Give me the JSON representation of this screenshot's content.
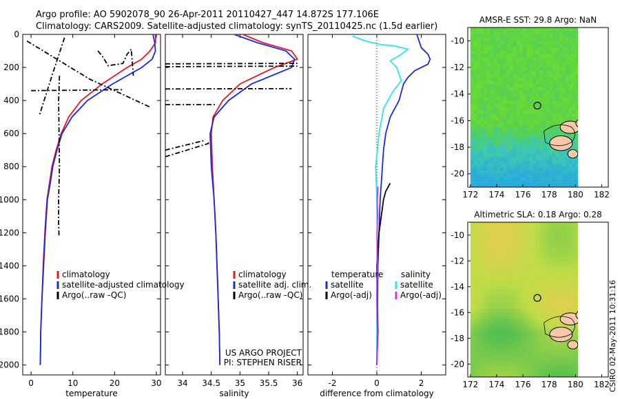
{
  "header": {
    "line1": "Argo profile: AO 5902078_90 26-Apr-2011 20110427_447 14.872S 177.106E",
    "line2": "Climatology: CARS2009. Satellite-adjusted climatology: synTS_20110425.nc (1.5d earlier)"
  },
  "colors": {
    "climatology": "#e8141e",
    "satellite": "#1428e6",
    "argo": "#000000",
    "sat_salinity": "#28e6f0",
    "argo_adj_salinity": "#e628e6"
  },
  "chart_data": [
    {
      "type": "line",
      "name": "temperature",
      "xlabel": "temperature",
      "xlim": [
        -2,
        31
      ],
      "ylim": [
        2060,
        0
      ],
      "xticks": [
        "0",
        "10",
        "20",
        "30"
      ],
      "yticks": [
        "0",
        "200",
        "400",
        "600",
        "800",
        "1000",
        "1200",
        "1400",
        "1600",
        "1800",
        "2000"
      ],
      "legend": [
        "climatology",
        "satellite-adjusted climatology",
        "Argo(..raw -QC)"
      ],
      "series": [
        {
          "name": "climatology",
          "color": "#e8141e",
          "dash": "",
          "x": [
            29.8,
            29.8,
            28.5,
            26.5,
            23,
            17,
            12,
            9,
            7.2,
            6,
            5,
            4.4,
            3.8,
            3.3,
            2.9,
            2.6,
            2.3,
            2.2
          ],
          "y": [
            0,
            50,
            100,
            150,
            200,
            300,
            400,
            500,
            600,
            700,
            800,
            900,
            1000,
            1200,
            1400,
            1600,
            1800,
            2000
          ]
        },
        {
          "name": "satellite-adjusted climatology",
          "color": "#1428e6",
          "dash": "",
          "x": [
            29.2,
            29.6,
            29.8,
            29,
            26.5,
            19.5,
            13.5,
            9.8,
            7.4,
            6.2,
            5.2,
            4.6,
            3.9,
            3.4,
            3,
            2.6,
            2.3,
            2.2
          ],
          "y": [
            0,
            50,
            100,
            150,
            200,
            300,
            400,
            500,
            600,
            700,
            800,
            900,
            1000,
            1200,
            1400,
            1600,
            1800,
            2000
          ]
        },
        {
          "name": "Argo(..raw -QC) A",
          "color": "#000000",
          "dash": "7 3 2 3",
          "x": [
            8,
            5,
            2
          ],
          "y": [
            20,
            250,
            490
          ]
        },
        {
          "name": "Argo(..raw -QC) B",
          "color": "#000000",
          "dash": "7 3 2 3",
          "x": [
            -1,
            14,
            28.5
          ],
          "y": [
            40,
            270,
            440
          ]
        },
        {
          "name": "Argo(..raw -QC) C",
          "color": "#000000",
          "dash": "7 3 2 3",
          "x": [
            0,
            10,
            17,
            22
          ],
          "y": [
            340,
            338,
            336,
            334
          ]
        },
        {
          "name": "Argo(..raw -QC) D",
          "color": "#000000",
          "dash": "7 3 2 3",
          "x": [
            6.8,
            6.6,
            6.7,
            6.8,
            6.6,
            6.6,
            6.7
          ],
          "y": [
            250,
            400,
            600,
            800,
            1000,
            1150,
            1220
          ]
        },
        {
          "name": "Argo(..raw -QC) E",
          "color": "#000000",
          "dash": "7 3 2 3",
          "x": [
            16,
            17,
            18.5,
            19.5,
            21,
            22,
            23,
            24,
            24.5
          ],
          "y": [
            100,
            130,
            190,
            185,
            180,
            175,
            120,
            90,
            250
          ]
        }
      ]
    },
    {
      "type": "line",
      "name": "salinity",
      "xlabel": "salinity",
      "xlim": [
        33.7,
        36.1
      ],
      "ylim": [
        2060,
        0
      ],
      "xticks": [
        "34",
        "34.5",
        "35",
        "35.5",
        "36"
      ],
      "legend": [
        "climatology",
        "satellite adj. clim.",
        "Argo(..raw -QC)"
      ],
      "annotation": [
        "US ARGO PROJECT",
        "PI: STEPHEN RISER"
      ],
      "series": [
        {
          "name": "climatology",
          "color": "#e8141e",
          "dash": "",
          "x": [
            35.05,
            35.4,
            35.9,
            36.0,
            35.6,
            35.0,
            34.7,
            34.53,
            34.5,
            34.52,
            34.55,
            34.58,
            34.6,
            34.62,
            34.64,
            34.65
          ],
          "y": [
            0,
            50,
            100,
            150,
            200,
            300,
            400,
            500,
            600,
            800,
            1000,
            1200,
            1400,
            1600,
            1800,
            2000
          ]
        },
        {
          "name": "satellite adj. clim.",
          "color": "#1428e6",
          "dash": "",
          "x": [
            34.9,
            35.3,
            35.8,
            35.95,
            35.9,
            35.2,
            34.8,
            34.55,
            34.48,
            34.5,
            34.55,
            34.58,
            34.6,
            34.62,
            34.64,
            34.65
          ],
          "y": [
            0,
            50,
            100,
            150,
            200,
            300,
            400,
            500,
            600,
            800,
            1000,
            1200,
            1400,
            1600,
            1800,
            2000
          ]
        },
        {
          "name": "Argo(..raw -QC) A",
          "color": "#000000",
          "dash": "7 3 2 3",
          "x": [
            33.7,
            36.0
          ],
          "y": [
            178,
            175
          ]
        },
        {
          "name": "Argo(..raw -QC) B",
          "color": "#000000",
          "dash": "7 3 2 3",
          "x": [
            33.7,
            36.0
          ],
          "y": [
            195,
            192
          ]
        },
        {
          "name": "Argo(..raw -QC) C",
          "color": "#000000",
          "dash": "7 3 2 3",
          "x": [
            33.7,
            35.9
          ],
          "y": [
            330,
            328
          ]
        },
        {
          "name": "Argo(..raw -QC) D",
          "color": "#000000",
          "dash": "7 3 2 3",
          "x": [
            33.7,
            34.6
          ],
          "y": [
            425,
            425
          ]
        },
        {
          "name": "Argo(..raw -QC) E",
          "color": "#000000",
          "dash": "7 3 2 3",
          "x": [
            33.7,
            34.45,
            34.45
          ],
          "y": [
            740,
            660,
            650
          ]
        },
        {
          "name": "Argo(..raw -QC) F",
          "color": "#000000",
          "dash": "7 3 2 3",
          "x": [
            33.7,
            34.4
          ],
          "y": [
            700,
            640
          ]
        }
      ]
    },
    {
      "type": "line",
      "name": "difference",
      "xlabel": "difference from climatology",
      "xlim": [
        -3.1,
        3.1
      ],
      "ylim": [
        2060,
        0
      ],
      "xticks": [
        "-2",
        "0",
        "2"
      ],
      "legend_titles": [
        "temperature",
        "salinity"
      ],
      "legend": [
        "satellite",
        "Argo(-adj)",
        "satellite",
        "Argo(-adj)"
      ],
      "series": [
        {
          "name": "temperature satellite",
          "color": "#1428e6",
          "dash": "",
          "x": [
            1.8,
            2.0,
            2.3,
            2.4,
            2.3,
            2.0,
            1.7,
            1.4,
            1.2,
            1.0,
            0.6,
            0.4,
            0.3,
            0.25,
            0.2,
            0.15,
            0.1,
            0.05,
            0.02,
            0.0
          ],
          "y": [
            0,
            80,
            120,
            150,
            180,
            200,
            220,
            260,
            300,
            400,
            500,
            600,
            700,
            800,
            900,
            1000,
            1200,
            1400,
            1700,
            2000
          ]
        },
        {
          "name": "salinity satellite",
          "color": "#28e6f0",
          "dash": "",
          "x": [
            -1.1,
            -0.5,
            0.1,
            0.8,
            1.4,
            1.0,
            0.6,
            0.9,
            1.1,
            0.7,
            0.3,
            0.1,
            -0.05,
            0.0,
            0.02,
            0.0,
            0.0,
            0.0
          ],
          "y": [
            10,
            40,
            60,
            70,
            90,
            130,
            160,
            200,
            280,
            350,
            450,
            600,
            800,
            1000,
            1200,
            1500,
            1800,
            2000
          ]
        },
        {
          "name": "temperature Argo(-adj)",
          "color": "#000000",
          "dash": "",
          "x": [
            0.6,
            0.4,
            0.3,
            0.2,
            0.1,
            0.05,
            0.0,
            0.02,
            0.05,
            0.0
          ],
          "y": [
            900,
            950,
            1000,
            1100,
            1200,
            1300,
            1400,
            1600,
            1800,
            2000
          ]
        },
        {
          "name": "salinity Argo(-adj)",
          "color": "#e628e6",
          "dash": "",
          "x": [
            0.05,
            0.02,
            0.03,
            0.01,
            0.02,
            0.0,
            0.03,
            0.01
          ],
          "y": [
            920,
            1000,
            1100,
            1200,
            1400,
            1600,
            1800,
            2000
          ]
        }
      ]
    },
    {
      "type": "heatmap",
      "name": "sst-map",
      "title": "AMSR-E SST: 29.8 Argo: NaN",
      "xlim": [
        171.8,
        182.5
      ],
      "ylim": [
        -21,
        -9
      ],
      "xticks": [
        "172",
        "174",
        "176",
        "178",
        "180",
        "182"
      ],
      "yticks": [
        "-10",
        "-12",
        "-14",
        "-16",
        "-18",
        "-20"
      ],
      "argo_marker": [
        177.1,
        -14.87
      ]
    },
    {
      "type": "heatmap",
      "name": "sla-map",
      "title": "Altimetric SLA: 0.18 Argo: 0.28",
      "xlim": [
        171.8,
        182.5
      ],
      "ylim": [
        -21,
        -9
      ],
      "xticks": [
        "172",
        "174",
        "176",
        "178",
        "180",
        "182"
      ],
      "yticks": [
        "-10",
        "-12",
        "-14",
        "-16",
        "-18",
        "-20"
      ],
      "argo_marker": [
        177.1,
        -14.87
      ]
    }
  ],
  "side_label": "CSIRO 02-May-2011 10:31:16"
}
